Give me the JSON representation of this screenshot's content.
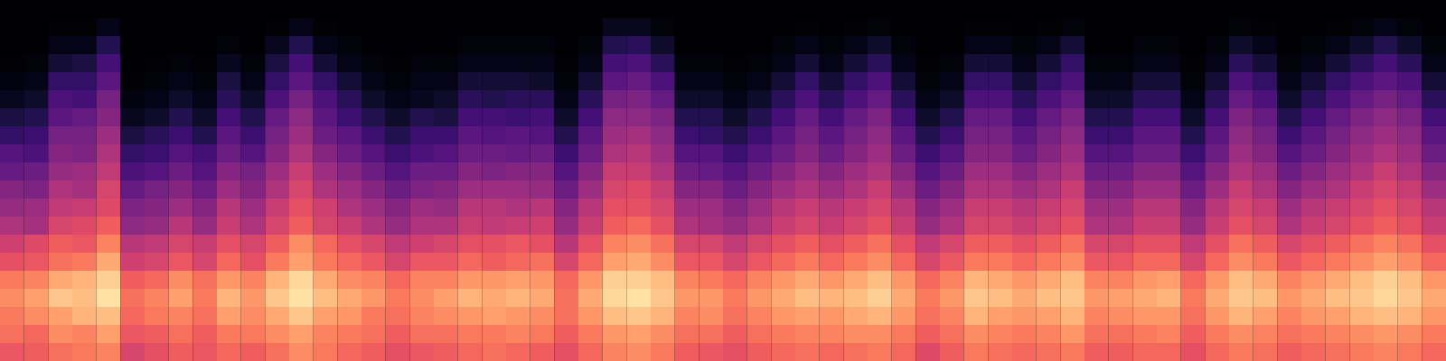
{
  "chart_data": {
    "type": "heatmap",
    "tick_labels": false,
    "color": "magma",
    "zlim": [
      0,
      100
    ],
    "cells": [
      [
        64,
        70,
        72,
        76,
        72,
        62,
        56,
        48,
        42,
        38,
        30,
        26,
        18,
        12,
        6,
        3,
        1,
        0,
        0,
        0
      ],
      [
        66,
        68,
        76,
        80,
        74,
        64,
        60,
        46,
        44,
        36,
        32,
        24,
        20,
        14,
        8,
        4,
        2,
        0,
        0,
        0
      ],
      [
        70,
        76,
        80,
        88,
        82,
        70,
        66,
        58,
        52,
        48,
        42,
        38,
        34,
        28,
        24,
        18,
        10,
        4,
        1,
        0
      ],
      [
        72,
        74,
        84,
        86,
        84,
        72,
        64,
        60,
        54,
        46,
        44,
        36,
        34,
        30,
        22,
        18,
        12,
        4,
        1,
        0
      ],
      [
        74,
        80,
        86,
        94,
        90,
        82,
        74,
        66,
        60,
        58,
        52,
        48,
        44,
        38,
        34,
        28,
        22,
        14,
        4,
        0
      ],
      [
        58,
        64,
        68,
        70,
        66,
        56,
        50,
        40,
        36,
        30,
        24,
        18,
        12,
        6,
        3,
        1,
        0,
        0,
        0,
        0
      ],
      [
        62,
        66,
        72,
        74,
        68,
        58,
        52,
        42,
        38,
        34,
        26,
        20,
        16,
        8,
        4,
        2,
        1,
        0,
        0,
        0
      ],
      [
        66,
        70,
        74,
        80,
        76,
        64,
        58,
        50,
        44,
        38,
        32,
        26,
        20,
        14,
        8,
        4,
        2,
        0,
        0,
        0
      ],
      [
        64,
        66,
        70,
        72,
        70,
        58,
        54,
        42,
        38,
        32,
        26,
        22,
        14,
        8,
        4,
        2,
        1,
        0,
        0,
        0
      ],
      [
        68,
        72,
        80,
        84,
        78,
        68,
        62,
        54,
        50,
        44,
        38,
        32,
        28,
        22,
        16,
        12,
        6,
        2,
        0,
        0
      ],
      [
        66,
        72,
        76,
        78,
        74,
        62,
        58,
        48,
        44,
        38,
        34,
        26,
        20,
        14,
        8,
        4,
        2,
        0,
        0,
        0
      ],
      [
        70,
        76,
        82,
        88,
        84,
        72,
        66,
        58,
        54,
        48,
        44,
        38,
        34,
        30,
        24,
        18,
        12,
        6,
        1,
        0
      ],
      [
        76,
        80,
        88,
        94,
        92,
        80,
        76,
        66,
        62,
        58,
        54,
        48,
        44,
        40,
        34,
        28,
        22,
        14,
        4,
        0
      ],
      [
        72,
        74,
        80,
        86,
        82,
        72,
        68,
        58,
        56,
        48,
        44,
        38,
        32,
        28,
        24,
        18,
        10,
        4,
        1,
        0
      ],
      [
        68,
        72,
        78,
        82,
        76,
        68,
        62,
        54,
        48,
        44,
        38,
        32,
        28,
        20,
        16,
        10,
        4,
        2,
        0,
        0
      ],
      [
        66,
        70,
        72,
        78,
        74,
        64,
        58,
        48,
        44,
        38,
        32,
        26,
        20,
        14,
        8,
        4,
        2,
        0,
        0,
        0
      ],
      [
        62,
        66,
        70,
        72,
        68,
        58,
        52,
        42,
        38,
        32,
        26,
        20,
        14,
        8,
        4,
        2,
        1,
        0,
        0,
        0
      ],
      [
        64,
        70,
        74,
        76,
        74,
        64,
        56,
        48,
        44,
        36,
        32,
        24,
        20,
        14,
        6,
        4,
        2,
        0,
        0,
        0
      ],
      [
        66,
        70,
        76,
        80,
        74,
        64,
        58,
        48,
        42,
        38,
        32,
        26,
        20,
        12,
        8,
        4,
        2,
        0,
        0,
        0
      ],
      [
        68,
        72,
        78,
        84,
        78,
        68,
        62,
        54,
        50,
        44,
        38,
        32,
        28,
        22,
        16,
        10,
        4,
        2,
        0,
        0
      ],
      [
        70,
        72,
        80,
        82,
        78,
        66,
        62,
        52,
        50,
        44,
        36,
        32,
        26,
        22,
        14,
        10,
        4,
        2,
        0,
        0
      ],
      [
        68,
        74,
        78,
        84,
        80,
        68,
        64,
        54,
        48,
        44,
        38,
        30,
        28,
        20,
        16,
        10,
        4,
        2,
        0,
        0
      ],
      [
        66,
        72,
        76,
        82,
        78,
        70,
        62,
        56,
        50,
        42,
        38,
        32,
        26,
        22,
        16,
        8,
        4,
        2,
        0,
        0
      ],
      [
        62,
        66,
        70,
        70,
        68,
        58,
        50,
        42,
        38,
        32,
        26,
        20,
        14,
        8,
        4,
        2,
        1,
        0,
        0,
        0
      ],
      [
        68,
        72,
        78,
        82,
        78,
        68,
        62,
        54,
        50,
        44,
        38,
        32,
        28,
        22,
        16,
        10,
        4,
        2,
        0,
        0
      ],
      [
        74,
        78,
        86,
        92,
        90,
        80,
        74,
        66,
        62,
        58,
        54,
        48,
        44,
        40,
        34,
        28,
        22,
        14,
        6,
        0
      ],
      [
        76,
        80,
        88,
        94,
        90,
        82,
        76,
        68,
        62,
        60,
        54,
        50,
        46,
        40,
        36,
        30,
        24,
        16,
        6,
        0
      ],
      [
        72,
        76,
        84,
        88,
        86,
        76,
        70,
        62,
        58,
        54,
        48,
        44,
        40,
        36,
        30,
        24,
        16,
        8,
        2,
        0
      ],
      [
        66,
        70,
        74,
        78,
        74,
        64,
        58,
        48,
        44,
        38,
        32,
        26,
        20,
        14,
        8,
        4,
        2,
        0,
        0,
        0
      ],
      [
        64,
        70,
        76,
        78,
        72,
        64,
        58,
        46,
        44,
        38,
        30,
        26,
        18,
        14,
        8,
        4,
        2,
        0,
        0,
        0
      ],
      [
        62,
        66,
        70,
        72,
        68,
        58,
        52,
        42,
        38,
        32,
        26,
        20,
        14,
        8,
        4,
        2,
        1,
        0,
        0,
        0
      ],
      [
        66,
        70,
        74,
        78,
        74,
        64,
        58,
        48,
        44,
        38,
        32,
        26,
        20,
        14,
        8,
        4,
        2,
        0,
        0,
        0
      ],
      [
        68,
        72,
        78,
        82,
        78,
        68,
        62,
        54,
        50,
        44,
        38,
        32,
        28,
        22,
        16,
        10,
        4,
        2,
        0,
        0
      ],
      [
        70,
        74,
        80,
        86,
        82,
        72,
        66,
        58,
        54,
        48,
        44,
        38,
        34,
        30,
        24,
        18,
        10,
        4,
        1,
        0
      ],
      [
        68,
        74,
        78,
        84,
        78,
        68,
        62,
        54,
        50,
        44,
        38,
        32,
        28,
        22,
        16,
        10,
        4,
        2,
        0,
        0
      ],
      [
        70,
        76,
        82,
        86,
        82,
        72,
        66,
        58,
        54,
        48,
        44,
        38,
        34,
        30,
        24,
        18,
        10,
        4,
        1,
        0
      ],
      [
        72,
        76,
        84,
        90,
        86,
        76,
        70,
        62,
        58,
        54,
        48,
        44,
        40,
        36,
        30,
        24,
        16,
        8,
        2,
        0
      ],
      [
        68,
        72,
        78,
        82,
        78,
        68,
        62,
        54,
        50,
        44,
        38,
        32,
        28,
        22,
        16,
        10,
        4,
        2,
        0,
        0
      ],
      [
        60,
        66,
        70,
        72,
        68,
        58,
        52,
        42,
        38,
        32,
        26,
        20,
        14,
        8,
        4,
        2,
        1,
        0,
        0,
        0
      ],
      [
        66,
        70,
        74,
        78,
        74,
        64,
        58,
        48,
        44,
        38,
        32,
        26,
        20,
        14,
        8,
        4,
        2,
        0,
        0,
        0
      ],
      [
        72,
        76,
        84,
        88,
        84,
        72,
        66,
        58,
        54,
        48,
        44,
        38,
        34,
        30,
        24,
        18,
        10,
        4,
        1,
        0
      ],
      [
        70,
        74,
        80,
        86,
        82,
        72,
        66,
        58,
        54,
        48,
        44,
        38,
        34,
        30,
        24,
        18,
        10,
        4,
        1,
        0
      ],
      [
        68,
        72,
        78,
        82,
        78,
        68,
        62,
        54,
        50,
        44,
        38,
        32,
        28,
        22,
        16,
        10,
        4,
        2,
        0,
        0
      ],
      [
        70,
        74,
        80,
        86,
        82,
        72,
        66,
        58,
        54,
        48,
        44,
        38,
        34,
        30,
        24,
        18,
        10,
        4,
        1,
        0
      ],
      [
        72,
        78,
        84,
        88,
        86,
        76,
        70,
        62,
        58,
        54,
        48,
        44,
        40,
        36,
        30,
        24,
        18,
        10,
        2,
        0
      ],
      [
        66,
        70,
        74,
        78,
        74,
        64,
        58,
        48,
        44,
        38,
        32,
        26,
        20,
        14,
        8,
        4,
        2,
        0,
        0,
        0
      ],
      [
        66,
        70,
        76,
        80,
        74,
        64,
        58,
        48,
        44,
        38,
        32,
        26,
        20,
        14,
        8,
        4,
        2,
        0,
        0,
        0
      ],
      [
        68,
        72,
        78,
        82,
        78,
        68,
        62,
        54,
        50,
        44,
        38,
        32,
        28,
        22,
        16,
        10,
        4,
        2,
        0,
        0
      ],
      [
        68,
        74,
        78,
        84,
        80,
        68,
        62,
        54,
        50,
        44,
        38,
        32,
        28,
        22,
        16,
        10,
        4,
        2,
        0,
        0
      ],
      [
        62,
        66,
        70,
        72,
        68,
        58,
        52,
        42,
        38,
        32,
        26,
        20,
        14,
        8,
        4,
        2,
        1,
        0,
        0,
        0
      ],
      [
        68,
        72,
        78,
        82,
        78,
        68,
        62,
        54,
        50,
        44,
        38,
        32,
        28,
        22,
        16,
        10,
        4,
        2,
        0,
        0
      ],
      [
        72,
        76,
        84,
        88,
        86,
        76,
        70,
        62,
        58,
        54,
        48,
        44,
        40,
        36,
        30,
        24,
        16,
        8,
        2,
        0
      ],
      [
        70,
        74,
        80,
        86,
        82,
        72,
        66,
        58,
        54,
        48,
        44,
        38,
        34,
        30,
        24,
        18,
        10,
        4,
        1,
        0
      ],
      [
        66,
        70,
        74,
        78,
        74,
        64,
        58,
        48,
        44,
        38,
        32,
        26,
        20,
        14,
        8,
        4,
        2,
        0,
        0,
        0
      ],
      [
        68,
        72,
        78,
        82,
        78,
        68,
        62,
        54,
        50,
        44,
        38,
        32,
        28,
        22,
        16,
        10,
        4,
        2,
        0,
        0
      ],
      [
        70,
        74,
        80,
        86,
        82,
        72,
        66,
        58,
        54,
        48,
        44,
        38,
        34,
        30,
        24,
        18,
        10,
        4,
        1,
        0
      ],
      [
        72,
        76,
        84,
        88,
        86,
        76,
        70,
        62,
        58,
        54,
        48,
        44,
        40,
        36,
        30,
        24,
        16,
        8,
        2,
        0
      ],
      [
        74,
        78,
        86,
        92,
        90,
        80,
        74,
        66,
        62,
        58,
        54,
        48,
        44,
        40,
        34,
        28,
        22,
        14,
        4,
        0
      ],
      [
        72,
        76,
        84,
        88,
        86,
        76,
        70,
        62,
        58,
        54,
        48,
        44,
        40,
        36,
        30,
        24,
        16,
        8,
        2,
        0
      ],
      [
        68,
        72,
        78,
        82,
        78,
        68,
        62,
        54,
        50,
        44,
        38,
        32,
        28,
        22,
        16,
        10,
        4,
        2,
        0,
        0
      ]
    ]
  }
}
